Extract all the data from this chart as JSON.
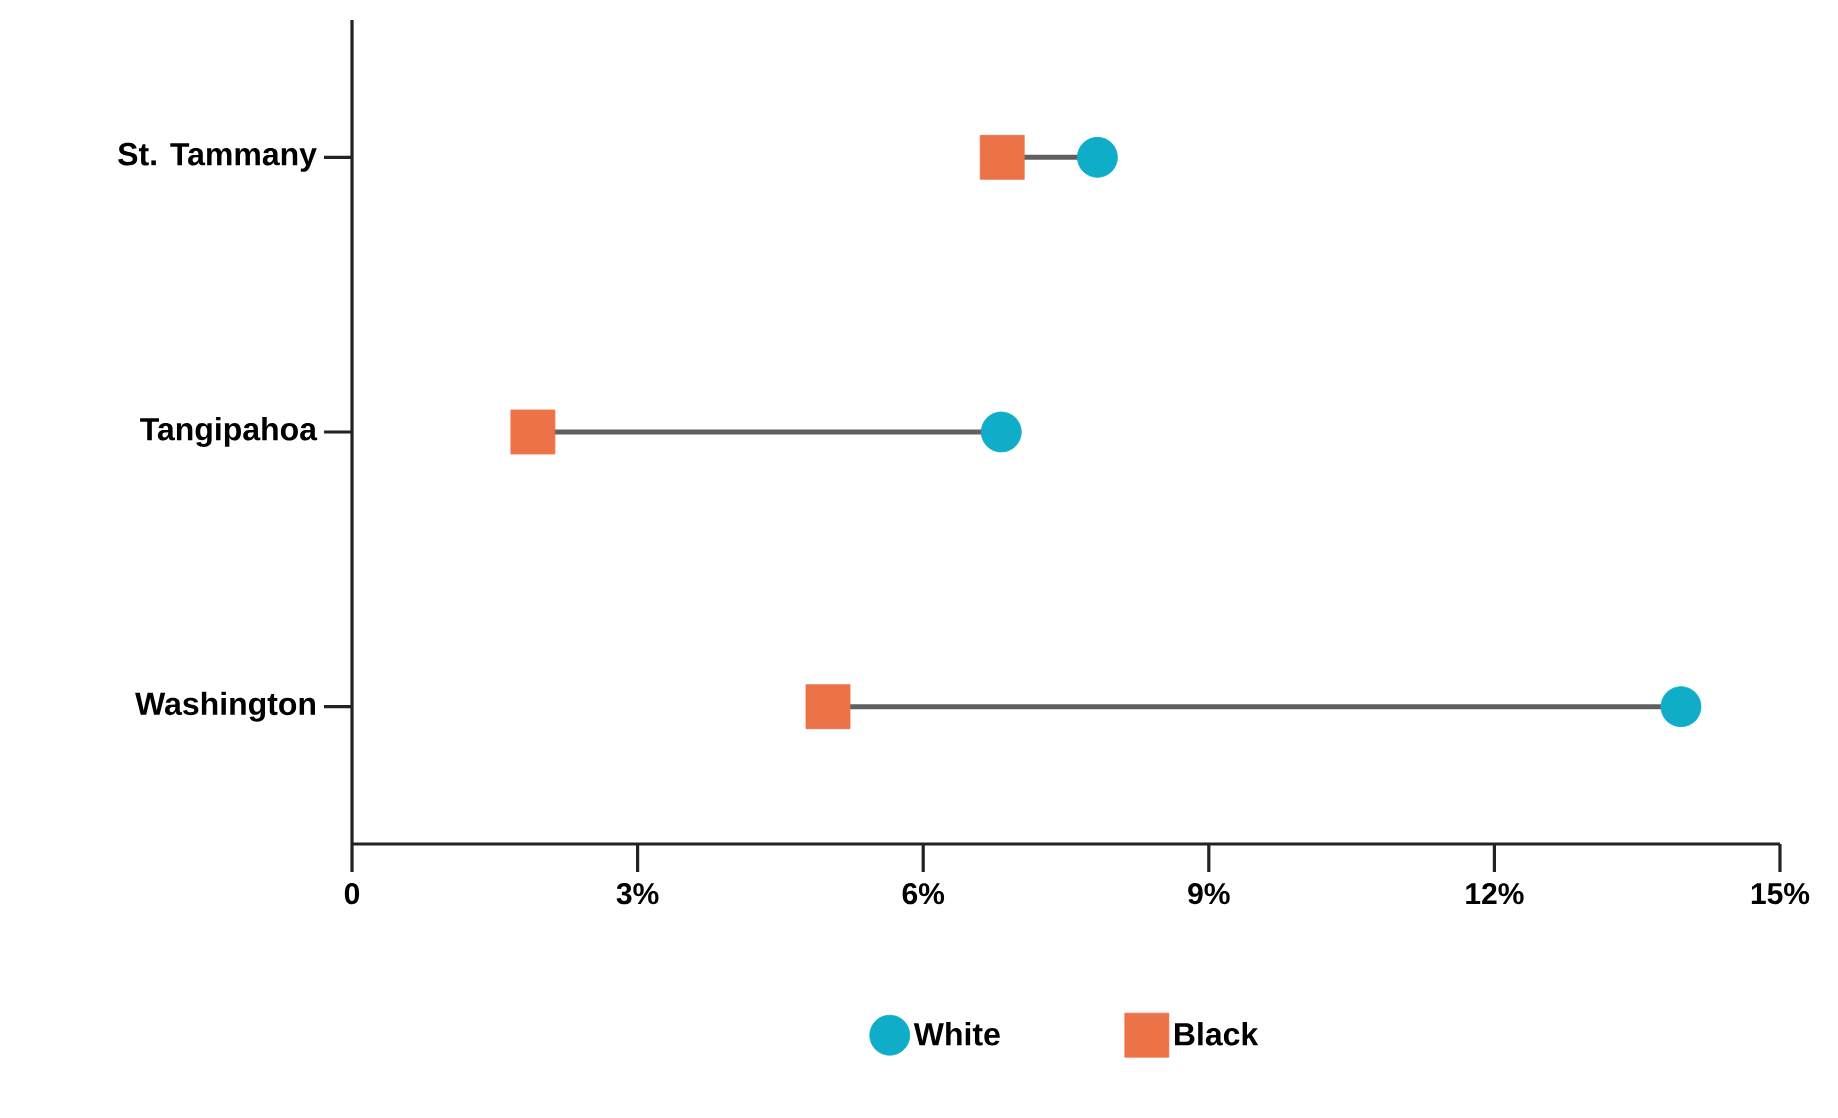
{
  "chart_data": {
    "type": "scatter",
    "orientation": "horizontal",
    "categories": [
      "St. Tammany",
      "Tangipahoa",
      "Washington"
    ],
    "series": [
      {
        "name": "White",
        "color": "#10adc9",
        "marker": "circle",
        "values": [
          7.83,
          6.82,
          13.96
        ]
      },
      {
        "name": "Black",
        "color": "#ec7248",
        "marker": "square",
        "values": [
          6.83,
          1.9,
          5.0
        ]
      }
    ],
    "xlim": [
      0,
      15
    ],
    "xticks": [
      {
        "value": 0,
        "label": "0"
      },
      {
        "value": 3,
        "label": "3%"
      },
      {
        "value": 6,
        "label": "6%"
      },
      {
        "value": 9,
        "label": "9%"
      },
      {
        "value": 12,
        "label": "12%"
      },
      {
        "value": 15,
        "label": "15%"
      }
    ],
    "grid": false,
    "legend": "bottom"
  }
}
